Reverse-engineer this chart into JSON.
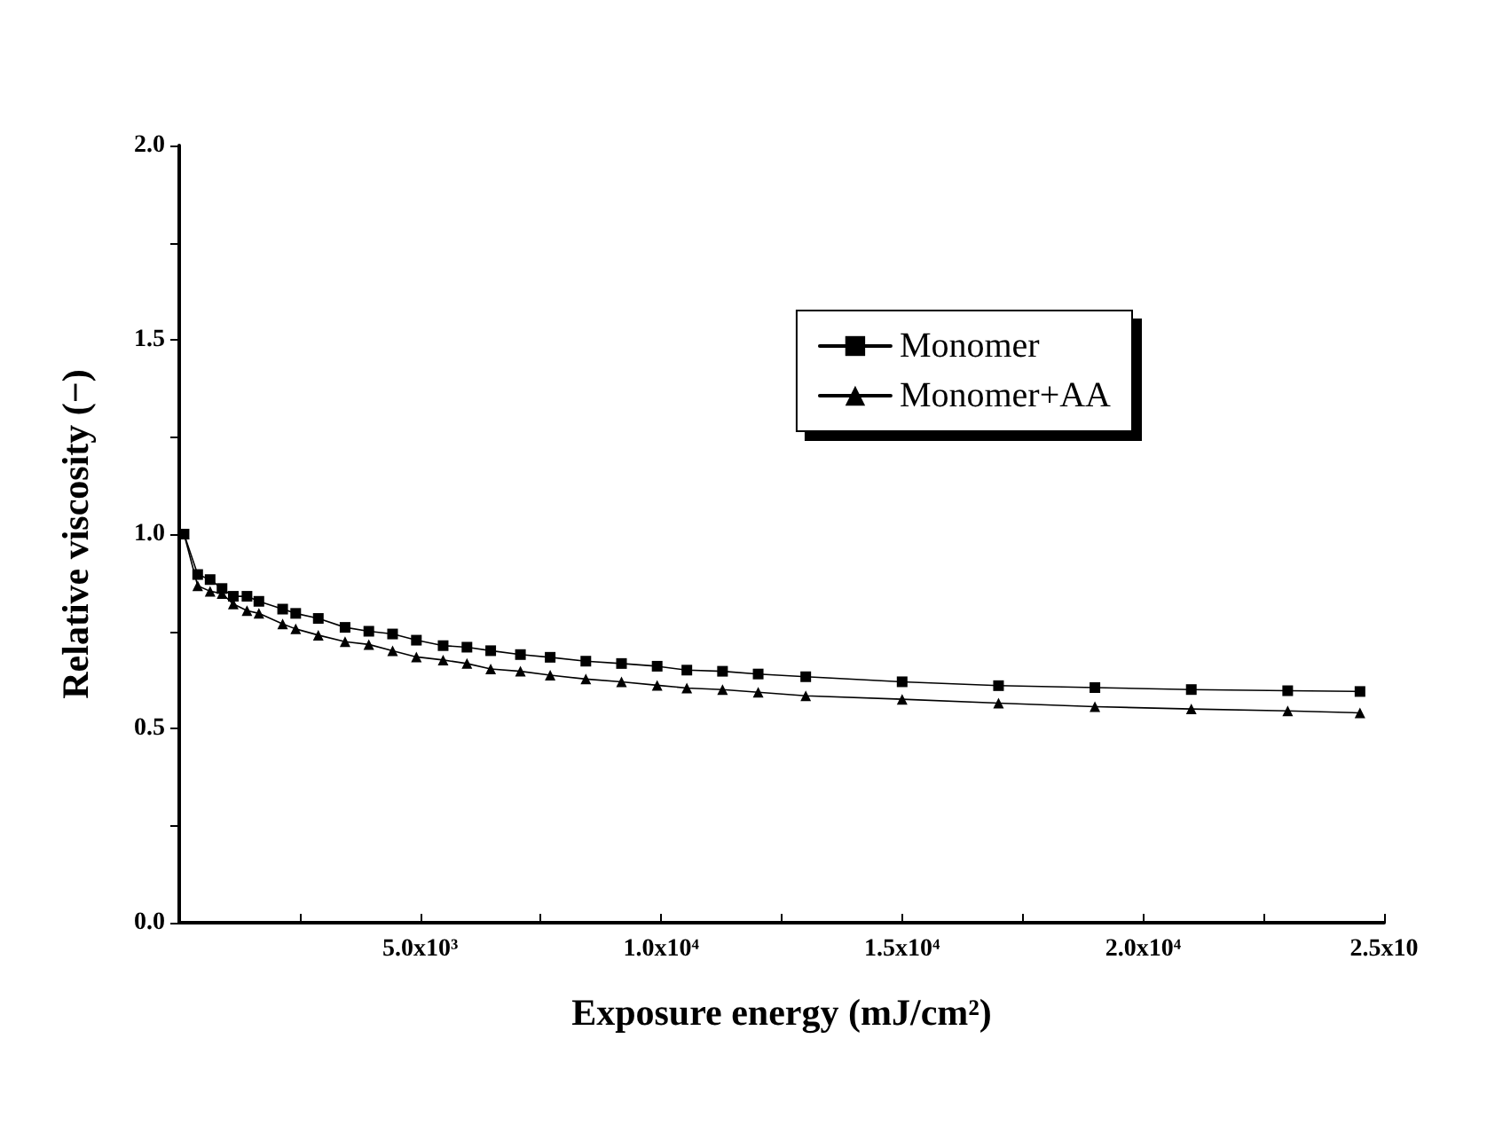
{
  "chart_data": {
    "type": "line",
    "xlabel": "Exposure energy (mJ/cm²)",
    "ylabel": "Relative viscosity (−)",
    "xlim": [
      0,
      25000
    ],
    "ylim": [
      0,
      2
    ],
    "xticks": [
      {
        "value": 0,
        "label": null
      },
      {
        "value": 2500,
        "label": null
      },
      {
        "value": 5000,
        "label": "5.0x10³"
      },
      {
        "value": 7500,
        "label": null
      },
      {
        "value": 10000,
        "label": "1.0x10⁴"
      },
      {
        "value": 12500,
        "label": null
      },
      {
        "value": 15000,
        "label": "1.5x10⁴"
      },
      {
        "value": 17500,
        "label": null
      },
      {
        "value": 20000,
        "label": "2.0x10⁴"
      },
      {
        "value": 22500,
        "label": null
      },
      {
        "value": 25000,
        "label": "2.5x10"
      }
    ],
    "yticks": [
      {
        "value": 0,
        "label": "0.0"
      },
      {
        "value": 0.25,
        "label": null
      },
      {
        "value": 0.5,
        "label": "0.5"
      },
      {
        "value": 0.75,
        "label": null
      },
      {
        "value": 1,
        "label": "1.0"
      },
      {
        "value": 1.25,
        "label": null
      },
      {
        "value": 1.5,
        "label": "1.5"
      },
      {
        "value": 1.75,
        "label": null
      },
      {
        "value": 2,
        "label": "2.0"
      }
    ],
    "grid": false,
    "legend": "top right",
    "line_style": "solid",
    "series": [
      {
        "name": "Monomer",
        "color": "#000000",
        "marker": "square",
        "x": [
          100,
          383,
          641,
          888,
          1122,
          1406,
          1653,
          2146,
          2417,
          2886,
          3441,
          3934,
          4427,
          4921,
          5476,
          5970,
          6463,
          7080,
          7697,
          8437,
          9177,
          9917,
          10533,
          11273,
          12013,
          13000,
          15000,
          17000,
          19000,
          21000,
          23000,
          24500
        ],
        "values": [
          1.0,
          0.896,
          0.883,
          0.86,
          0.84,
          0.84,
          0.827,
          0.807,
          0.796,
          0.783,
          0.76,
          0.75,
          0.743,
          0.727,
          0.713,
          0.709,
          0.7,
          0.69,
          0.683,
          0.673,
          0.667,
          0.66,
          0.65,
          0.647,
          0.64,
          0.633,
          0.62,
          0.61,
          0.605,
          0.6,
          0.597,
          0.595
        ]
      },
      {
        "name": "Monomer+AA",
        "color": "#000000",
        "marker": "triangle",
        "x": [
          100,
          383,
          641,
          888,
          1122,
          1406,
          1653,
          2146,
          2417,
          2886,
          3441,
          3934,
          4427,
          4921,
          5476,
          5970,
          6463,
          7080,
          7697,
          8437,
          9177,
          9917,
          10533,
          11273,
          12013,
          13000,
          15000,
          17000,
          19000,
          21000,
          23000,
          24500
        ],
        "values": [
          1.0,
          0.867,
          0.853,
          0.847,
          0.82,
          0.803,
          0.796,
          0.769,
          0.756,
          0.74,
          0.723,
          0.716,
          0.7,
          0.684,
          0.676,
          0.667,
          0.653,
          0.647,
          0.637,
          0.627,
          0.62,
          0.611,
          0.604,
          0.6,
          0.593,
          0.584,
          0.575,
          0.565,
          0.556,
          0.55,
          0.545,
          0.54
        ]
      }
    ]
  }
}
